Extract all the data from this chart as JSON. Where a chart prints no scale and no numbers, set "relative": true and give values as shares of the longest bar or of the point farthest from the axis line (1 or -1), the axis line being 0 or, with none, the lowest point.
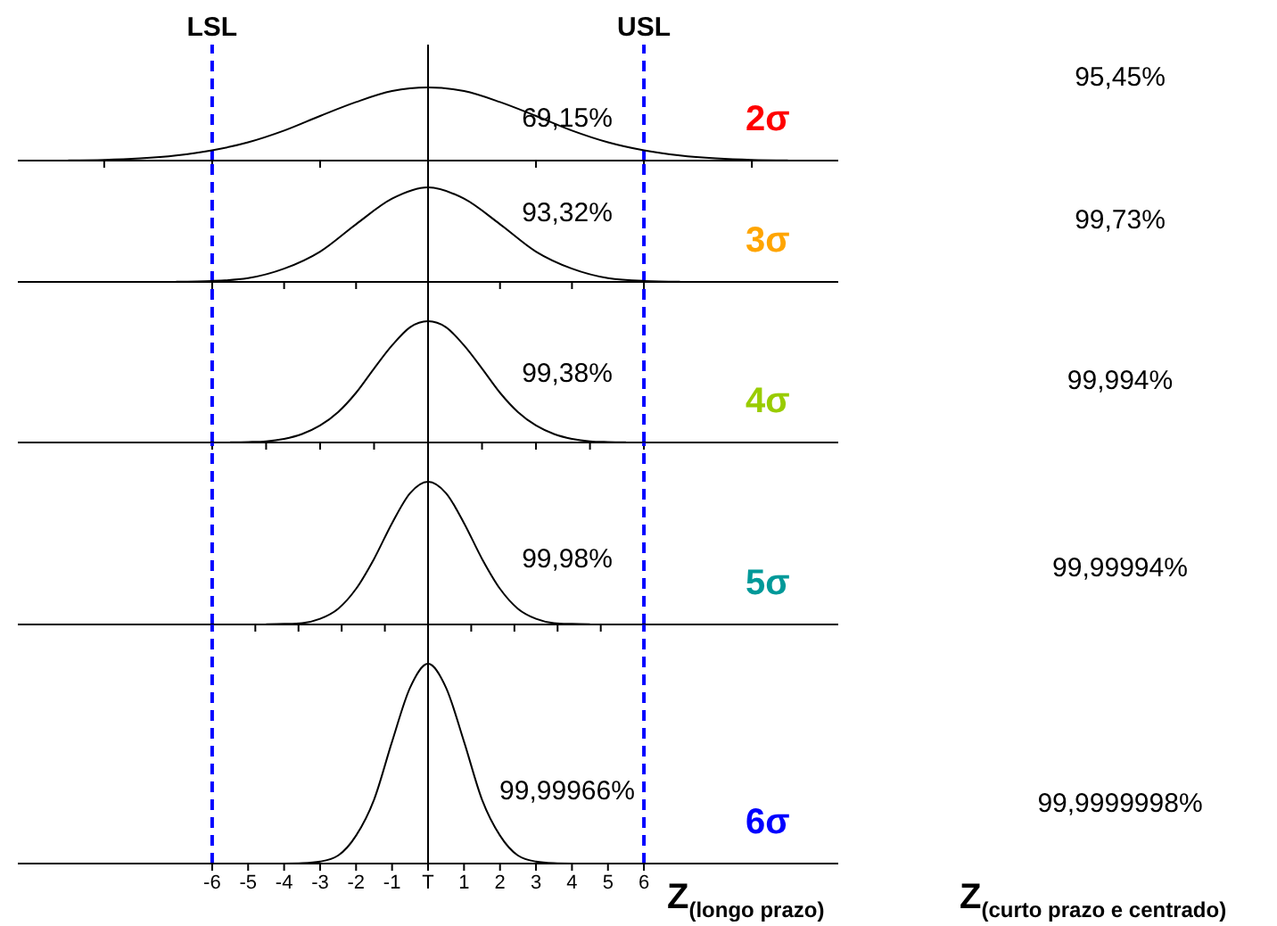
{
  "chart_data": [
    {
      "type": "line",
      "relative": true,
      "x": [
        -10,
        -9,
        -8,
        -7,
        -6,
        -5,
        -4,
        -3,
        -2,
        -1,
        0,
        1,
        2,
        3,
        4,
        5,
        6,
        7,
        8,
        9,
        10
      ],
      "series": [
        {
          "color": "#000000",
          "values": [
            0.004,
            0.01,
            0.03,
            0.07,
            0.14,
            0.25,
            0.41,
            0.61,
            0.8,
            0.95,
            1,
            0.95,
            0.8,
            0.61,
            0.41,
            0.25,
            0.14,
            0.07,
            0.03,
            0.01,
            0.004
          ]
        }
      ],
      "xlim": [
        -11.4,
        11.4
      ],
      "xticks": [
        {
          "value": -9,
          "label": null
        },
        {
          "value": -6,
          "label": null
        },
        {
          "value": -3,
          "label": null
        },
        {
          "value": 3,
          "label": null
        },
        {
          "value": 6,
          "label": null
        },
        {
          "value": 9,
          "label": null
        }
      ],
      "tick_labels": false,
      "marker": "none",
      "line_style": "solid",
      "ref_lines": [
        {
          "axis": "x",
          "value": -6,
          "label": "LSL",
          "color": "#0000ff",
          "line_style": "dashed"
        },
        {
          "axis": "x",
          "value": 6,
          "label": "USL",
          "color": "#0000ff",
          "line_style": "dashed"
        },
        {
          "axis": "x",
          "value": 0,
          "color": "#000000",
          "line_style": "solid"
        }
      ],
      "annotations": [
        "69,15%",
        "2σ",
        "95,45%"
      ]
    },
    {
      "type": "line",
      "relative": true,
      "x": [
        -7,
        -6,
        -5,
        -4,
        -3,
        -2,
        -1,
        0,
        1,
        2,
        3,
        4,
        5,
        6,
        7
      ],
      "series": [
        {
          "color": "#000000",
          "values": [
            0.002,
            0.01,
            0.04,
            0.14,
            0.32,
            0.61,
            0.88,
            1,
            0.88,
            0.61,
            0.32,
            0.14,
            0.04,
            0.01,
            0.002
          ]
        }
      ],
      "xlim": [
        -11.4,
        11.4
      ],
      "xticks": [
        {
          "value": -6,
          "label": null
        },
        {
          "value": -4,
          "label": null
        },
        {
          "value": -2,
          "label": null
        },
        {
          "value": 2,
          "label": null
        },
        {
          "value": 4,
          "label": null
        },
        {
          "value": 6,
          "label": null
        }
      ],
      "tick_labels": false,
      "marker": "none",
      "line_style": "solid",
      "ref_lines": [
        {
          "axis": "x",
          "value": -6,
          "color": "#0000ff",
          "line_style": "dashed"
        },
        {
          "axis": "x",
          "value": 6,
          "color": "#0000ff",
          "line_style": "dashed"
        },
        {
          "axis": "x",
          "value": 0,
          "color": "#000000",
          "line_style": "solid"
        }
      ],
      "annotations": [
        "93,32%",
        "3σ",
        "99,73%"
      ]
    },
    {
      "type": "line",
      "relative": true,
      "x": [
        -5.5,
        -5,
        -4.5,
        -4,
        -3.5,
        -3,
        -2.5,
        -2,
        -1.5,
        -1,
        -0.5,
        0,
        0.5,
        1,
        1.5,
        2,
        2.5,
        3,
        3.5,
        4,
        4.5,
        5,
        5.5
      ],
      "series": [
        {
          "color": "#000000",
          "values": [
            0.001,
            0.004,
            0.01,
            0.03,
            0.07,
            0.14,
            0.25,
            0.41,
            0.61,
            0.8,
            0.95,
            1,
            0.95,
            0.8,
            0.61,
            0.41,
            0.25,
            0.14,
            0.07,
            0.03,
            0.01,
            0.004,
            0.001
          ]
        }
      ],
      "xlim": [
        -11.4,
        11.4
      ],
      "xticks": [
        {
          "value": -6,
          "label": null
        },
        {
          "value": -4.5,
          "label": null
        },
        {
          "value": -3,
          "label": null
        },
        {
          "value": -1.5,
          "label": null
        },
        {
          "value": 1.5,
          "label": null
        },
        {
          "value": 3,
          "label": null
        },
        {
          "value": 4.5,
          "label": null
        },
        {
          "value": 6,
          "label": null
        }
      ],
      "tick_labels": false,
      "marker": "none",
      "line_style": "solid",
      "ref_lines": [
        {
          "axis": "x",
          "value": -6,
          "color": "#0000ff",
          "line_style": "dashed"
        },
        {
          "axis": "x",
          "value": 6,
          "color": "#0000ff",
          "line_style": "dashed"
        },
        {
          "axis": "x",
          "value": 0,
          "color": "#000000",
          "line_style": "solid"
        }
      ],
      "annotations": [
        "99,38%",
        "4σ",
        "99,994%"
      ]
    },
    {
      "type": "line",
      "relative": true,
      "x": [
        -4.5,
        -4,
        -3.5,
        -3,
        -2.5,
        -2,
        -1.5,
        -1,
        -0.5,
        0,
        0.5,
        1,
        1.5,
        2,
        2.5,
        3,
        3.5,
        4,
        4.5
      ],
      "series": [
        {
          "color": "#000000",
          "values": [
            0.001,
            0.004,
            0.01,
            0.04,
            0.11,
            0.25,
            0.46,
            0.71,
            0.92,
            1,
            0.92,
            0.71,
            0.46,
            0.25,
            0.11,
            0.04,
            0.01,
            0.004,
            0.001
          ]
        }
      ],
      "xlim": [
        -11.4,
        11.4
      ],
      "xticks": [
        {
          "value": -4.8,
          "label": null
        },
        {
          "value": -3.6,
          "label": null
        },
        {
          "value": -2.4,
          "label": null
        },
        {
          "value": -1.2,
          "label": null
        },
        {
          "value": 1.2,
          "label": null
        },
        {
          "value": 2.4,
          "label": null
        },
        {
          "value": 3.6,
          "label": null
        },
        {
          "value": 4.8,
          "label": null
        }
      ],
      "tick_labels": false,
      "marker": "none",
      "line_style": "solid",
      "ref_lines": [
        {
          "axis": "x",
          "value": -6,
          "color": "#0000ff",
          "line_style": "dashed"
        },
        {
          "axis": "x",
          "value": 6,
          "color": "#0000ff",
          "line_style": "dashed"
        },
        {
          "axis": "x",
          "value": 0,
          "color": "#000000",
          "line_style": "solid"
        }
      ],
      "annotations": [
        "99,98%",
        "5σ",
        "99,99994%"
      ]
    },
    {
      "type": "line",
      "relative": true,
      "x": [
        -4,
        -3.5,
        -3,
        -2.5,
        -2,
        -1.5,
        -1,
        -0.5,
        0,
        0.5,
        1,
        1.5,
        2,
        2.5,
        3,
        3.5,
        4
      ],
      "series": [
        {
          "color": "#000000",
          "values": [
            0,
            0.002,
            0.01,
            0.04,
            0.14,
            0.32,
            0.61,
            0.88,
            1,
            0.88,
            0.61,
            0.32,
            0.14,
            0.04,
            0.01,
            0.002,
            0
          ]
        }
      ],
      "xlim": [
        -11.4,
        11.4
      ],
      "xticks": [
        -6,
        -5,
        -4,
        -3,
        -2,
        -1,
        {
          "value": 0,
          "label": "T"
        },
        1,
        2,
        3,
        4,
        5,
        6
      ],
      "tick_labels": "x",
      "marker": "none",
      "line_style": "solid",
      "xlabel": "Z$_{(longo prazo)}$",
      "ref_lines": [
        {
          "axis": "x",
          "value": -6,
          "color": "#0000ff",
          "line_style": "dashed"
        },
        {
          "axis": "x",
          "value": 6,
          "color": "#0000ff",
          "line_style": "dashed"
        },
        {
          "axis": "x",
          "value": 0,
          "color": "#000000",
          "line_style": "solid"
        }
      ],
      "annotations": [
        "99,99966%",
        "6σ",
        "99,9999998%",
        "Z$_{(curto prazo e centrado)}$"
      ]
    }
  ]
}
